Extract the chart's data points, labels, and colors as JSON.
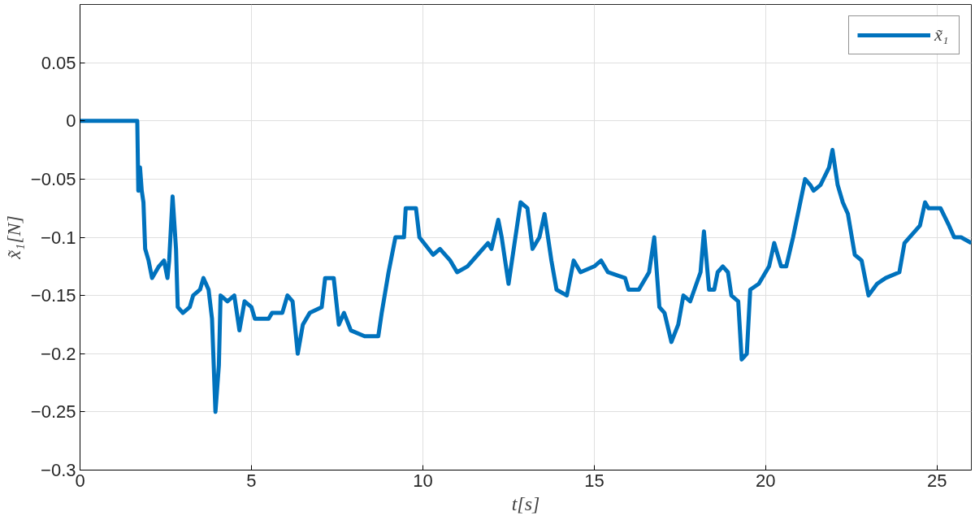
{
  "chart_data": {
    "type": "line",
    "xlabel": "t[s]",
    "ylabel": "x̃₁[N]",
    "xlim": [
      0,
      26
    ],
    "xticks": [
      0,
      5,
      10,
      15,
      20,
      25
    ],
    "ylim": [
      -0.3,
      0.1
    ],
    "yticks": [
      -0.3,
      -0.25,
      -0.2,
      -0.15,
      -0.1,
      -0.05,
      0,
      0.05
    ],
    "grid": true,
    "legend": "top right",
    "line_style": "solid",
    "series": [
      {
        "name": "x̃₁",
        "color": "#0072bd",
        "x": [
          0,
          1.67,
          1.7,
          1.75,
          1.8,
          1.85,
          1.9,
          2.0,
          2.1,
          2.2,
          2.3,
          2.45,
          2.55,
          2.6,
          2.7,
          2.8,
          2.85,
          3.0,
          3.2,
          3.3,
          3.5,
          3.6,
          3.75,
          3.85,
          3.95,
          4.05,
          4.1,
          4.3,
          4.5,
          4.65,
          4.8,
          5.0,
          5.1,
          5.5,
          5.6,
          5.9,
          6.05,
          6.2,
          6.35,
          6.5,
          6.7,
          7.05,
          7.15,
          7.4,
          7.55,
          7.7,
          7.9,
          8.3,
          8.7,
          8.8,
          9.0,
          9.2,
          9.45,
          9.5,
          9.8,
          9.9,
          10.3,
          10.5,
          10.8,
          11.0,
          11.3,
          11.6,
          11.9,
          12.0,
          12.2,
          12.3,
          12.5,
          12.7,
          12.85,
          13.05,
          13.2,
          13.4,
          13.55,
          13.75,
          13.9,
          14.2,
          14.4,
          14.6,
          15.0,
          15.2,
          15.4,
          15.9,
          16.0,
          16.3,
          16.6,
          16.75,
          16.9,
          17.05,
          17.25,
          17.45,
          17.6,
          17.8,
          18.1,
          18.2,
          18.35,
          18.5,
          18.6,
          18.75,
          18.9,
          19.0,
          19.2,
          19.3,
          19.45,
          19.55,
          19.8,
          20.1,
          20.25,
          20.45,
          20.6,
          20.8,
          21.15,
          21.3,
          21.4,
          21.6,
          21.85,
          21.95,
          22.1,
          22.25,
          22.4,
          22.6,
          22.8,
          23.0,
          23.25,
          23.5,
          23.9,
          24.05,
          24.5,
          24.65,
          24.75,
          25.1,
          25.35,
          25.5,
          25.7,
          26.0
        ],
        "values": [
          0,
          0,
          -0.06,
          -0.04,
          -0.06,
          -0.07,
          -0.11,
          -0.12,
          -0.135,
          -0.13,
          -0.125,
          -0.12,
          -0.135,
          -0.12,
          -0.065,
          -0.11,
          -0.16,
          -0.165,
          -0.16,
          -0.15,
          -0.145,
          -0.135,
          -0.145,
          -0.17,
          -0.25,
          -0.21,
          -0.15,
          -0.155,
          -0.15,
          -0.18,
          -0.155,
          -0.16,
          -0.17,
          -0.17,
          -0.165,
          -0.165,
          -0.15,
          -0.155,
          -0.2,
          -0.175,
          -0.165,
          -0.16,
          -0.135,
          -0.135,
          -0.175,
          -0.165,
          -0.18,
          -0.185,
          -0.185,
          -0.165,
          -0.13,
          -0.1,
          -0.1,
          -0.075,
          -0.075,
          -0.1,
          -0.115,
          -0.11,
          -0.12,
          -0.13,
          -0.125,
          -0.115,
          -0.105,
          -0.11,
          -0.085,
          -0.1,
          -0.14,
          -0.1,
          -0.07,
          -0.075,
          -0.11,
          -0.1,
          -0.08,
          -0.12,
          -0.145,
          -0.15,
          -0.12,
          -0.13,
          -0.125,
          -0.12,
          -0.13,
          -0.135,
          -0.145,
          -0.145,
          -0.13,
          -0.1,
          -0.16,
          -0.165,
          -0.19,
          -0.175,
          -0.15,
          -0.155,
          -0.13,
          -0.095,
          -0.145,
          -0.145,
          -0.13,
          -0.125,
          -0.13,
          -0.15,
          -0.155,
          -0.205,
          -0.2,
          -0.145,
          -0.14,
          -0.125,
          -0.105,
          -0.125,
          -0.125,
          -0.1,
          -0.05,
          -0.055,
          -0.06,
          -0.055,
          -0.04,
          -0.025,
          -0.055,
          -0.07,
          -0.08,
          -0.115,
          -0.12,
          -0.15,
          -0.14,
          -0.135,
          -0.13,
          -0.105,
          -0.09,
          -0.07,
          -0.075,
          -0.075,
          -0.09,
          -0.1,
          -0.1,
          -0.105
        ]
      }
    ]
  }
}
